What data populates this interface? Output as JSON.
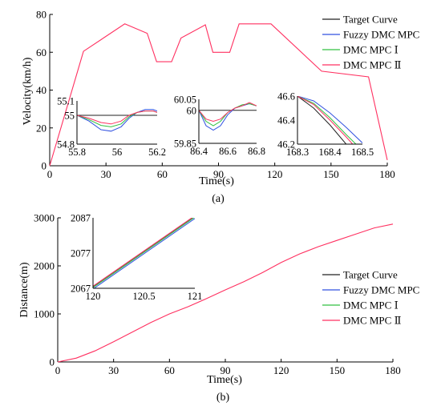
{
  "chart_data": [
    {
      "type": "line",
      "panel_label": "(a)",
      "xlabel": "Time(s)",
      "ylabel": "Velocity(km/h)",
      "xlim": [
        0,
        180
      ],
      "ylim": [
        0,
        80
      ],
      "xticks": [
        0,
        30,
        60,
        90,
        120,
        150,
        180
      ],
      "yticks": [
        0,
        20,
        40,
        60,
        80
      ],
      "legend": {
        "placement": "top-right",
        "entries": [
          "Target Curve",
          "Fuzzy DMC MPC",
          "DMC MPC Ⅰ",
          "DMC MPC Ⅱ"
        ]
      },
      "colors": {
        "target": "#222222",
        "fuzzy": "#3050e0",
        "dmc1": "#30c040",
        "dmc2": "#ff3060"
      },
      "series": [
        {
          "name": "DMC MPC Ⅱ",
          "x": [
            0,
            18,
            40,
            52,
            57,
            65,
            70,
            83,
            87,
            96,
            101,
            118,
            145,
            170,
            180
          ],
          "y": [
            0,
            60.5,
            75,
            70,
            55,
            55,
            67.5,
            74.5,
            60,
            60,
            75,
            75,
            50,
            47,
            3
          ]
        }
      ],
      "insets": [
        {
          "xlim": [
            55.8,
            56.2
          ],
          "ylim": [
            54.8,
            55.1
          ],
          "xticks": [
            "55.8",
            "56",
            "56.2"
          ],
          "yticks": [
            "54.8",
            "55",
            "55.1"
          ],
          "series": [
            {
              "name": "Target Curve",
              "x": [
                55.8,
                56.2
              ],
              "y": [
                55,
                55
              ]
            },
            {
              "name": "Fuzzy DMC MPC",
              "x": [
                55.8,
                55.86,
                55.92,
                55.97,
                56.02,
                56.06,
                56.1,
                56.14,
                56.18,
                56.2
              ],
              "y": [
                55,
                54.96,
                54.9,
                54.89,
                54.92,
                54.98,
                55.02,
                55.04,
                55.04,
                55.03
              ]
            },
            {
              "name": "DMC MPC Ⅰ",
              "x": [
                55.8,
                55.86,
                55.92,
                55.97,
                56.02,
                56.06,
                56.1,
                56.14,
                56.18,
                56.2
              ],
              "y": [
                55,
                54.97,
                54.93,
                54.92,
                54.94,
                54.99,
                55.02,
                55.03,
                55.03,
                55.02
              ]
            },
            {
              "name": "DMC MPC Ⅱ",
              "x": [
                55.8,
                55.86,
                55.92,
                55.97,
                56.02,
                56.06,
                56.1,
                56.14,
                56.18,
                56.2
              ],
              "y": [
                55,
                54.98,
                54.95,
                54.94,
                54.96,
                55,
                55.02,
                55.03,
                55.03,
                55.02
              ]
            }
          ]
        },
        {
          "xlim": [
            86.4,
            86.8
          ],
          "ylim": [
            59.85,
            60.05
          ],
          "xticks": [
            "86.4",
            "86.6",
            "86.8"
          ],
          "yticks": [
            "59.85",
            "60",
            "60.05"
          ],
          "series": [
            {
              "name": "Target Curve",
              "x": [
                86.4,
                86.8
              ],
              "y": [
                60,
                60
              ]
            },
            {
              "name": "Fuzzy DMC MPC",
              "x": [
                86.4,
                86.45,
                86.5,
                86.55,
                86.6,
                86.65,
                86.7,
                86.75,
                86.8
              ],
              "y": [
                60,
                59.93,
                59.91,
                59.93,
                59.98,
                60.01,
                60.02,
                60.03,
                60.02
              ]
            },
            {
              "name": "DMC MPC Ⅰ",
              "x": [
                86.4,
                86.45,
                86.5,
                86.55,
                86.6,
                86.65,
                86.7,
                86.75,
                86.8
              ],
              "y": [
                60,
                59.95,
                59.93,
                59.95,
                59.99,
                60.01,
                60.025,
                60.03,
                60.02
              ]
            },
            {
              "name": "DMC MPC Ⅱ",
              "x": [
                86.4,
                86.45,
                86.5,
                86.55,
                86.6,
                86.65,
                86.7,
                86.75,
                86.8
              ],
              "y": [
                60,
                59.96,
                59.95,
                59.96,
                59.99,
                60.01,
                60.02,
                60.035,
                60.02
              ]
            }
          ]
        },
        {
          "xlim": [
            168.3,
            168.5
          ],
          "ylim": [
            46.2,
            46.6
          ],
          "xticks": [
            "168.3",
            "168.4",
            "168.5"
          ],
          "yticks": [
            "46.2",
            "46.4",
            "46.6"
          ],
          "series": [
            {
              "name": "Target Curve",
              "x": [
                168.3,
                168.35,
                168.4,
                168.45
              ],
              "y": [
                46.6,
                46.5,
                46.36,
                46.2
              ]
            },
            {
              "name": "Fuzzy DMC MPC",
              "x": [
                168.3,
                168.35,
                168.4,
                168.45,
                168.5
              ],
              "y": [
                46.6,
                46.56,
                46.46,
                46.34,
                46.21
              ]
            },
            {
              "name": "DMC MPC Ⅰ",
              "x": [
                168.3,
                168.35,
                168.4,
                168.45,
                168.48
              ],
              "y": [
                46.6,
                46.54,
                46.42,
                46.28,
                46.2
              ]
            },
            {
              "name": "DMC MPC Ⅱ",
              "x": [
                168.3,
                168.35,
                168.4,
                168.45,
                168.47
              ],
              "y": [
                46.6,
                46.53,
                46.4,
                46.26,
                46.2
              ]
            }
          ]
        }
      ]
    },
    {
      "type": "line",
      "panel_label": "(b)",
      "xlabel": "Time(s)",
      "ylabel": "Distance(m)",
      "xlim": [
        0,
        180
      ],
      "ylim": [
        0,
        3000
      ],
      "xticks": [
        0,
        30,
        60,
        90,
        120,
        150,
        180
      ],
      "yticks": [
        0,
        1000,
        2000,
        3000
      ],
      "legend": {
        "placement": "right",
        "entries": [
          "Target Curve",
          "Fuzzy DMC MPC",
          "DMC MPC Ⅰ",
          "DMC MPC Ⅱ"
        ]
      },
      "colors": {
        "target": "#222222",
        "fuzzy": "#3050e0",
        "dmc1": "#30c040",
        "dmc2": "#ff3060"
      },
      "series": [
        {
          "name": "DMC MPC Ⅱ",
          "x": [
            0,
            10,
            20,
            30,
            40,
            50,
            60,
            70,
            80,
            90,
            100,
            110,
            120,
            130,
            140,
            150,
            160,
            170,
            180
          ],
          "y": [
            0,
            80,
            230,
            420,
            620,
            820,
            1000,
            1150,
            1320,
            1500,
            1670,
            1860,
            2070,
            2250,
            2400,
            2530,
            2660,
            2790,
            2870
          ]
        }
      ],
      "insets": [
        {
          "xlim": [
            120,
            121
          ],
          "ylim": [
            2067,
            2087
          ],
          "xticks": [
            "120",
            "120.5",
            "121"
          ],
          "yticks": [
            "2067",
            "2077",
            "2087"
          ],
          "series": [
            {
              "name": "Target Curve",
              "x": [
                120,
                121
              ],
              "y": [
                2067.5,
                2087.5
              ]
            },
            {
              "name": "Fuzzy DMC MPC",
              "x": [
                120,
                121
              ],
              "y": [
                2066.8,
                2086.8
              ]
            },
            {
              "name": "DMC MPC Ⅰ",
              "x": [
                120,
                121
              ],
              "y": [
                2067.2,
                2087.2
              ]
            },
            {
              "name": "DMC MPC Ⅱ",
              "x": [
                120,
                121
              ],
              "y": [
                2067.6,
                2087.6
              ]
            }
          ]
        }
      ]
    }
  ]
}
